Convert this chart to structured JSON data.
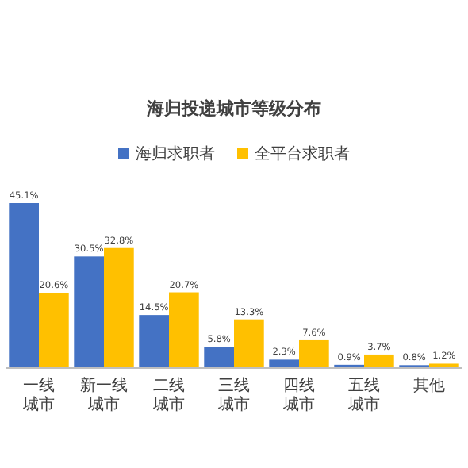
{
  "chart_data": {
    "type": "bar",
    "title": "海归投递城市等级分布",
    "categories": [
      "一线城市",
      "新一线城市",
      "二线城市",
      "三线城市",
      "四线城市",
      "五线城市",
      "其他"
    ],
    "series": [
      {
        "name": "海归求职者",
        "color": "#4472c4",
        "values": [
          45.1,
          30.5,
          14.5,
          5.8,
          2.3,
          0.9,
          0.8
        ],
        "value_labels": [
          "45.1%",
          "30.5%",
          "14.5%",
          "5.8%",
          "2.3%",
          "0.9%",
          "0.8%"
        ]
      },
      {
        "name": "全平台求职者",
        "color": "#ffc000",
        "values": [
          20.6,
          32.8,
          20.7,
          13.3,
          7.6,
          3.7,
          1.2
        ],
        "value_labels": [
          "20.6%",
          "32.8%",
          "20.7%",
          "13.3%",
          "7.6%",
          "3.7%",
          "1.2%"
        ]
      }
    ],
    "legend": "top"
  }
}
